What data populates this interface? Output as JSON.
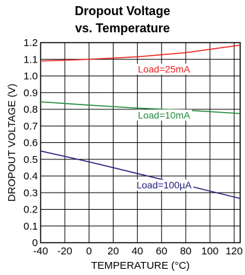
{
  "chart_data": {
    "type": "line",
    "title_lines": [
      "Dropout Voltage",
      "vs. Temperature"
    ],
    "xlabel": "TEMPERATURE (°C)",
    "ylabel": "DROPOUT VOLTAGE (V)",
    "xlim": [
      -40,
      125
    ],
    "ylim": [
      0,
      1.2
    ],
    "x_ticks": [
      -40,
      -20,
      0,
      20,
      40,
      60,
      80,
      100,
      120
    ],
    "x_tick_labels": [
      "-40",
      "-20",
      "0",
      "20",
      "40",
      "60",
      "80",
      "100",
      "120"
    ],
    "y_ticks": [
      0,
      0.1,
      0.2,
      0.3,
      0.4,
      0.5,
      0.6,
      0.7,
      0.8,
      0.9,
      1.0,
      1.1,
      1.2
    ],
    "y_tick_labels": [
      "0",
      "0.1",
      "0.2",
      "0.3",
      "0.4",
      "0.5",
      "0.6",
      "0.7",
      "0.8",
      "0.9",
      "1.0",
      "1.1",
      "1.2"
    ],
    "grid": true,
    "series": [
      {
        "label": "Load=25mA",
        "color": "#e8201e",
        "x": [
          -40,
          0,
          40,
          80,
          125
        ],
        "y": [
          1.09,
          1.1,
          1.115,
          1.14,
          1.185
        ]
      },
      {
        "label": "Load=10mA",
        "color": "#1f8a3c",
        "x": [
          -40,
          0,
          40,
          80,
          125
        ],
        "y": [
          0.845,
          0.825,
          0.807,
          0.795,
          0.775
        ]
      },
      {
        "label": "Load=100µA",
        "color": "#1f1a7a",
        "x": [
          -40,
          0,
          40,
          80,
          125
        ],
        "y": [
          0.55,
          0.485,
          0.415,
          0.345,
          0.265
        ]
      }
    ]
  }
}
